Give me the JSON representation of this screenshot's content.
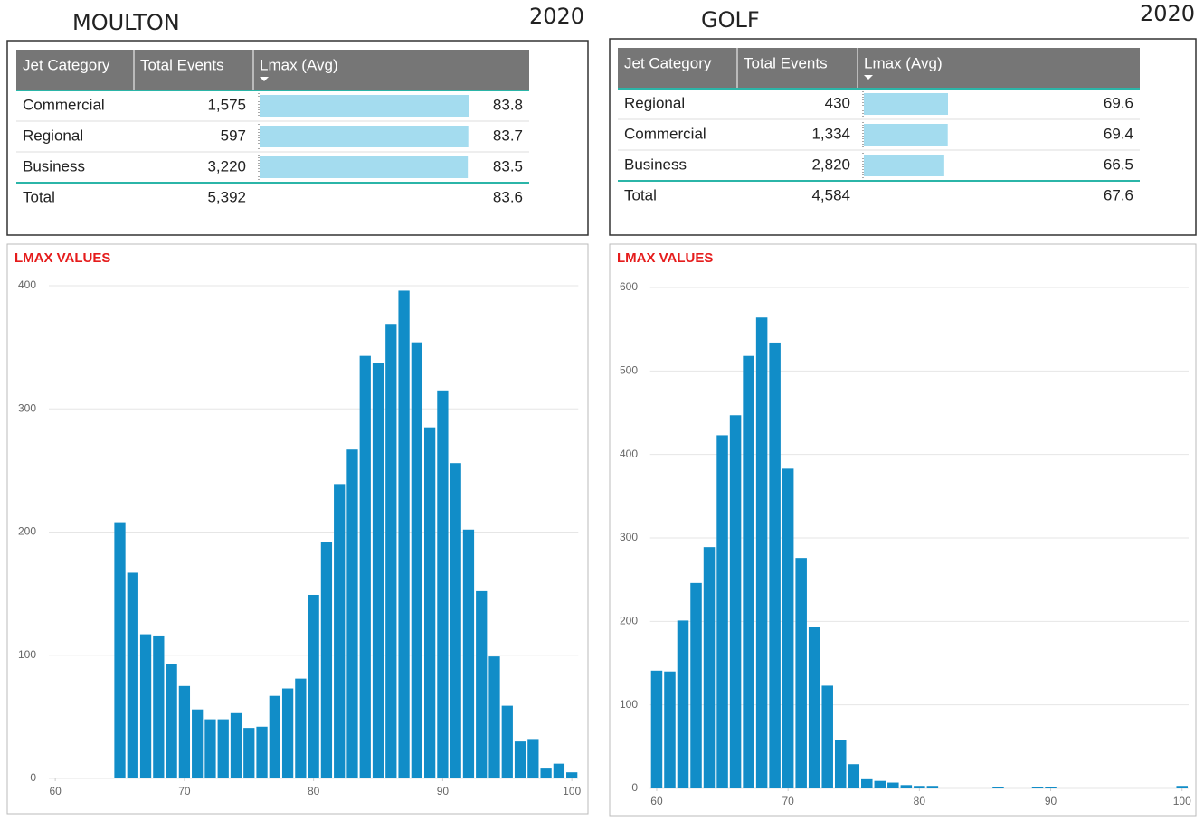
{
  "panels": [
    {
      "heading": "MOULTON",
      "year": "2020",
      "table": {
        "columns": [
          "Jet Category",
          "Total Events",
          "Lmax (Avg)"
        ],
        "rows": [
          [
            "Commercial",
            "1,575",
            83.8
          ],
          [
            "Regional",
            "597",
            83.7
          ],
          [
            "Business",
            "3,220",
            83.5
          ]
        ],
        "total": [
          "Total",
          "5,392",
          83.6
        ]
      }
    },
    {
      "heading": "GOLF",
      "year": "2020",
      "table": {
        "columns": [
          "Jet Category",
          "Total Events",
          "Lmax (Avg)"
        ],
        "rows": [
          [
            "Regional",
            "430",
            69.6
          ],
          [
            "Commercial",
            "1,334",
            69.4
          ],
          [
            "Business",
            "2,820",
            66.5
          ]
        ],
        "total": [
          "Total",
          "4,584",
          67.6
        ]
      }
    }
  ],
  "chart_data": [
    {
      "type": "histogram",
      "title": "LMAX VALUES",
      "color": "#118dc8",
      "grid": true,
      "bins": [
        64.5,
        65.5,
        66.5,
        67.5,
        68.5,
        69.5,
        70.5,
        71.5,
        72.5,
        73.5,
        74.5,
        75.5,
        76.5,
        77.5,
        78.5,
        79.5,
        80.5,
        81.5,
        82.5,
        83.5,
        84.5,
        85.5,
        86.5,
        87.5,
        88.5,
        89.5,
        90.5,
        91.5,
        92.5,
        93.5,
        94.5,
        95.5,
        96.5,
        97.5,
        98.5,
        99.5,
        100.5
      ],
      "values": [
        208,
        167,
        117,
        116,
        93,
        75,
        56,
        48,
        48,
        53,
        41,
        42,
        67,
        73,
        81,
        149,
        192,
        239,
        267,
        343,
        337,
        369,
        396,
        354,
        285,
        315,
        256,
        202,
        152,
        99,
        59,
        30,
        32,
        8,
        12,
        5
      ],
      "xlim": [
        59.5,
        100.5
      ],
      "xticks": [
        60,
        70,
        80,
        90,
        100
      ],
      "ylim": [
        0,
        400
      ],
      "yticks": [
        0,
        100,
        200,
        300,
        400
      ]
    },
    {
      "type": "histogram",
      "title": "LMAX VALUES",
      "color": "#118dc8",
      "grid": true,
      "bins": [
        59.5,
        60.5,
        61.5,
        62.5,
        63.5,
        64.5,
        65.5,
        66.5,
        67.5,
        68.5,
        69.5,
        70.5,
        71.5,
        72.5,
        73.5,
        74.5,
        75.5,
        76.5,
        77.5,
        78.5,
        79.5,
        80.5,
        81.5,
        82.5,
        83.5,
        84.5,
        85.5,
        86.5,
        87.5,
        88.5,
        89.5,
        90.5,
        91.5,
        92.5,
        93.5,
        94.5,
        95.5,
        96.5,
        97.5,
        98.5,
        99.5,
        100.5
      ],
      "values": [
        141,
        140,
        201,
        246,
        289,
        423,
        447,
        518,
        564,
        534,
        383,
        276,
        193,
        123,
        58,
        29,
        11,
        9,
        7,
        4,
        3,
        3,
        0,
        0,
        0,
        0,
        2,
        0,
        0,
        2,
        2,
        0,
        0,
        0,
        0,
        0,
        0,
        0,
        0,
        0,
        3
      ],
      "xlim": [
        59.5,
        100.5
      ],
      "xticks": [
        60,
        70,
        80,
        90,
        100
      ],
      "ylim": [
        0,
        600
      ],
      "yticks": [
        0,
        100,
        200,
        300,
        400,
        500,
        600
      ]
    }
  ]
}
